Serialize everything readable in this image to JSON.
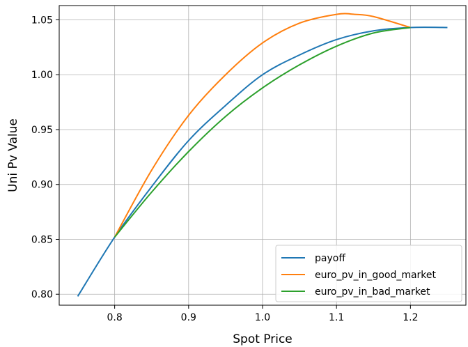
{
  "chart_data": {
    "type": "line",
    "title": "",
    "xlabel": "Spot Price",
    "ylabel": "Uni Pv Value",
    "xlim": [
      0.725,
      1.275
    ],
    "ylim": [
      0.79,
      1.063
    ],
    "x_ticks": [
      0.8,
      0.9,
      1.0,
      1.1,
      1.2
    ],
    "x_tick_labels": [
      "0.8",
      "0.9",
      "1.0",
      "1.1",
      "1.2"
    ],
    "y_ticks": [
      0.8,
      0.85,
      0.9,
      0.95,
      1.0,
      1.05
    ],
    "y_tick_labels": [
      "0.80",
      "0.85",
      "0.90",
      "0.95",
      "1.00",
      "1.05"
    ],
    "grid": true,
    "legend_position": "lower-right",
    "series": [
      {
        "name": "payoff",
        "color": "#1f77b4",
        "x": [
          0.75,
          0.8,
          0.85,
          0.9,
          0.95,
          1.0,
          1.05,
          1.1,
          1.15,
          1.2,
          1.25
        ],
        "y": [
          0.798,
          0.852,
          0.898,
          0.94,
          0.972,
          1.0,
          1.018,
          1.032,
          1.04,
          1.043,
          1.043
        ]
      },
      {
        "name": "euro_pv_in_good_market",
        "color": "#ff7f0e",
        "x": [
          0.8,
          0.85,
          0.9,
          0.95,
          1.0,
          1.05,
          1.1,
          1.125,
          1.15,
          1.2
        ],
        "y": [
          0.852,
          0.913,
          0.963,
          1.0,
          1.029,
          1.047,
          1.055,
          1.055,
          1.053,
          1.043
        ]
      },
      {
        "name": "euro_pv_in_bad_market",
        "color": "#2ca02c",
        "x": [
          0.8,
          0.85,
          0.9,
          0.95,
          1.0,
          1.05,
          1.1,
          1.15,
          1.2
        ],
        "y": [
          0.852,
          0.893,
          0.93,
          0.962,
          0.988,
          1.009,
          1.026,
          1.038,
          1.043
        ]
      }
    ]
  }
}
